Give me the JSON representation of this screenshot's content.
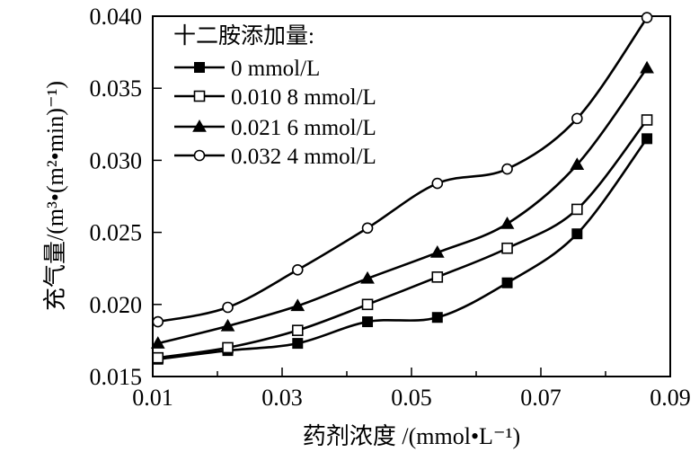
{
  "chart_data": {
    "type": "line",
    "xlabel": "药剂浓度 /(mmol•L⁻¹)",
    "ylabel": "充气量/(m³•(m²•min)⁻¹)",
    "xlim": [
      0.01,
      0.09
    ],
    "ylim": [
      0.015,
      0.04
    ],
    "x_ticks": [
      "0.01",
      "0.03",
      "0.05",
      "0.07",
      "0.09"
    ],
    "y_ticks": [
      "0.015",
      "0.020",
      "0.025",
      "0.030",
      "0.035",
      "0.040"
    ],
    "x_tick_values": [
      0.01,
      0.03,
      0.05,
      0.07,
      0.09
    ],
    "y_tick_values": [
      0.015,
      0.02,
      0.025,
      0.03,
      0.035,
      0.04
    ],
    "legend_title": "十二胺添加量:",
    "legend_position": "top-left",
    "grid": false,
    "series": [
      {
        "name": "0 mmol/L",
        "marker": "filled-square",
        "x": [
          0.0108,
          0.0216,
          0.0324,
          0.0432,
          0.054,
          0.0648,
          0.0756,
          0.0864
        ],
        "y": [
          0.0162,
          0.0168,
          0.0173,
          0.0188,
          0.0191,
          0.0215,
          0.0249,
          0.0315
        ]
      },
      {
        "name": "0.010 8 mmol/L",
        "marker": "open-square",
        "x": [
          0.0108,
          0.0216,
          0.0324,
          0.0432,
          0.054,
          0.0648,
          0.0756,
          0.0864
        ],
        "y": [
          0.0163,
          0.017,
          0.0182,
          0.02,
          0.0219,
          0.0239,
          0.0266,
          0.0328
        ]
      },
      {
        "name": "0.021 6 mmol/L",
        "marker": "filled-triangle",
        "x": [
          0.0108,
          0.0216,
          0.0324,
          0.0432,
          0.054,
          0.0648,
          0.0756,
          0.0864
        ],
        "y": [
          0.0173,
          0.0185,
          0.0199,
          0.0218,
          0.0236,
          0.0256,
          0.0297,
          0.0364
        ]
      },
      {
        "name": "0.032 4 mmol/L",
        "marker": "open-circle",
        "x": [
          0.0108,
          0.0216,
          0.0324,
          0.0432,
          0.054,
          0.0648,
          0.0756,
          0.0864
        ],
        "y": [
          0.0188,
          0.0198,
          0.0224,
          0.0253,
          0.0284,
          0.0294,
          0.0329,
          0.0399
        ]
      }
    ]
  }
}
